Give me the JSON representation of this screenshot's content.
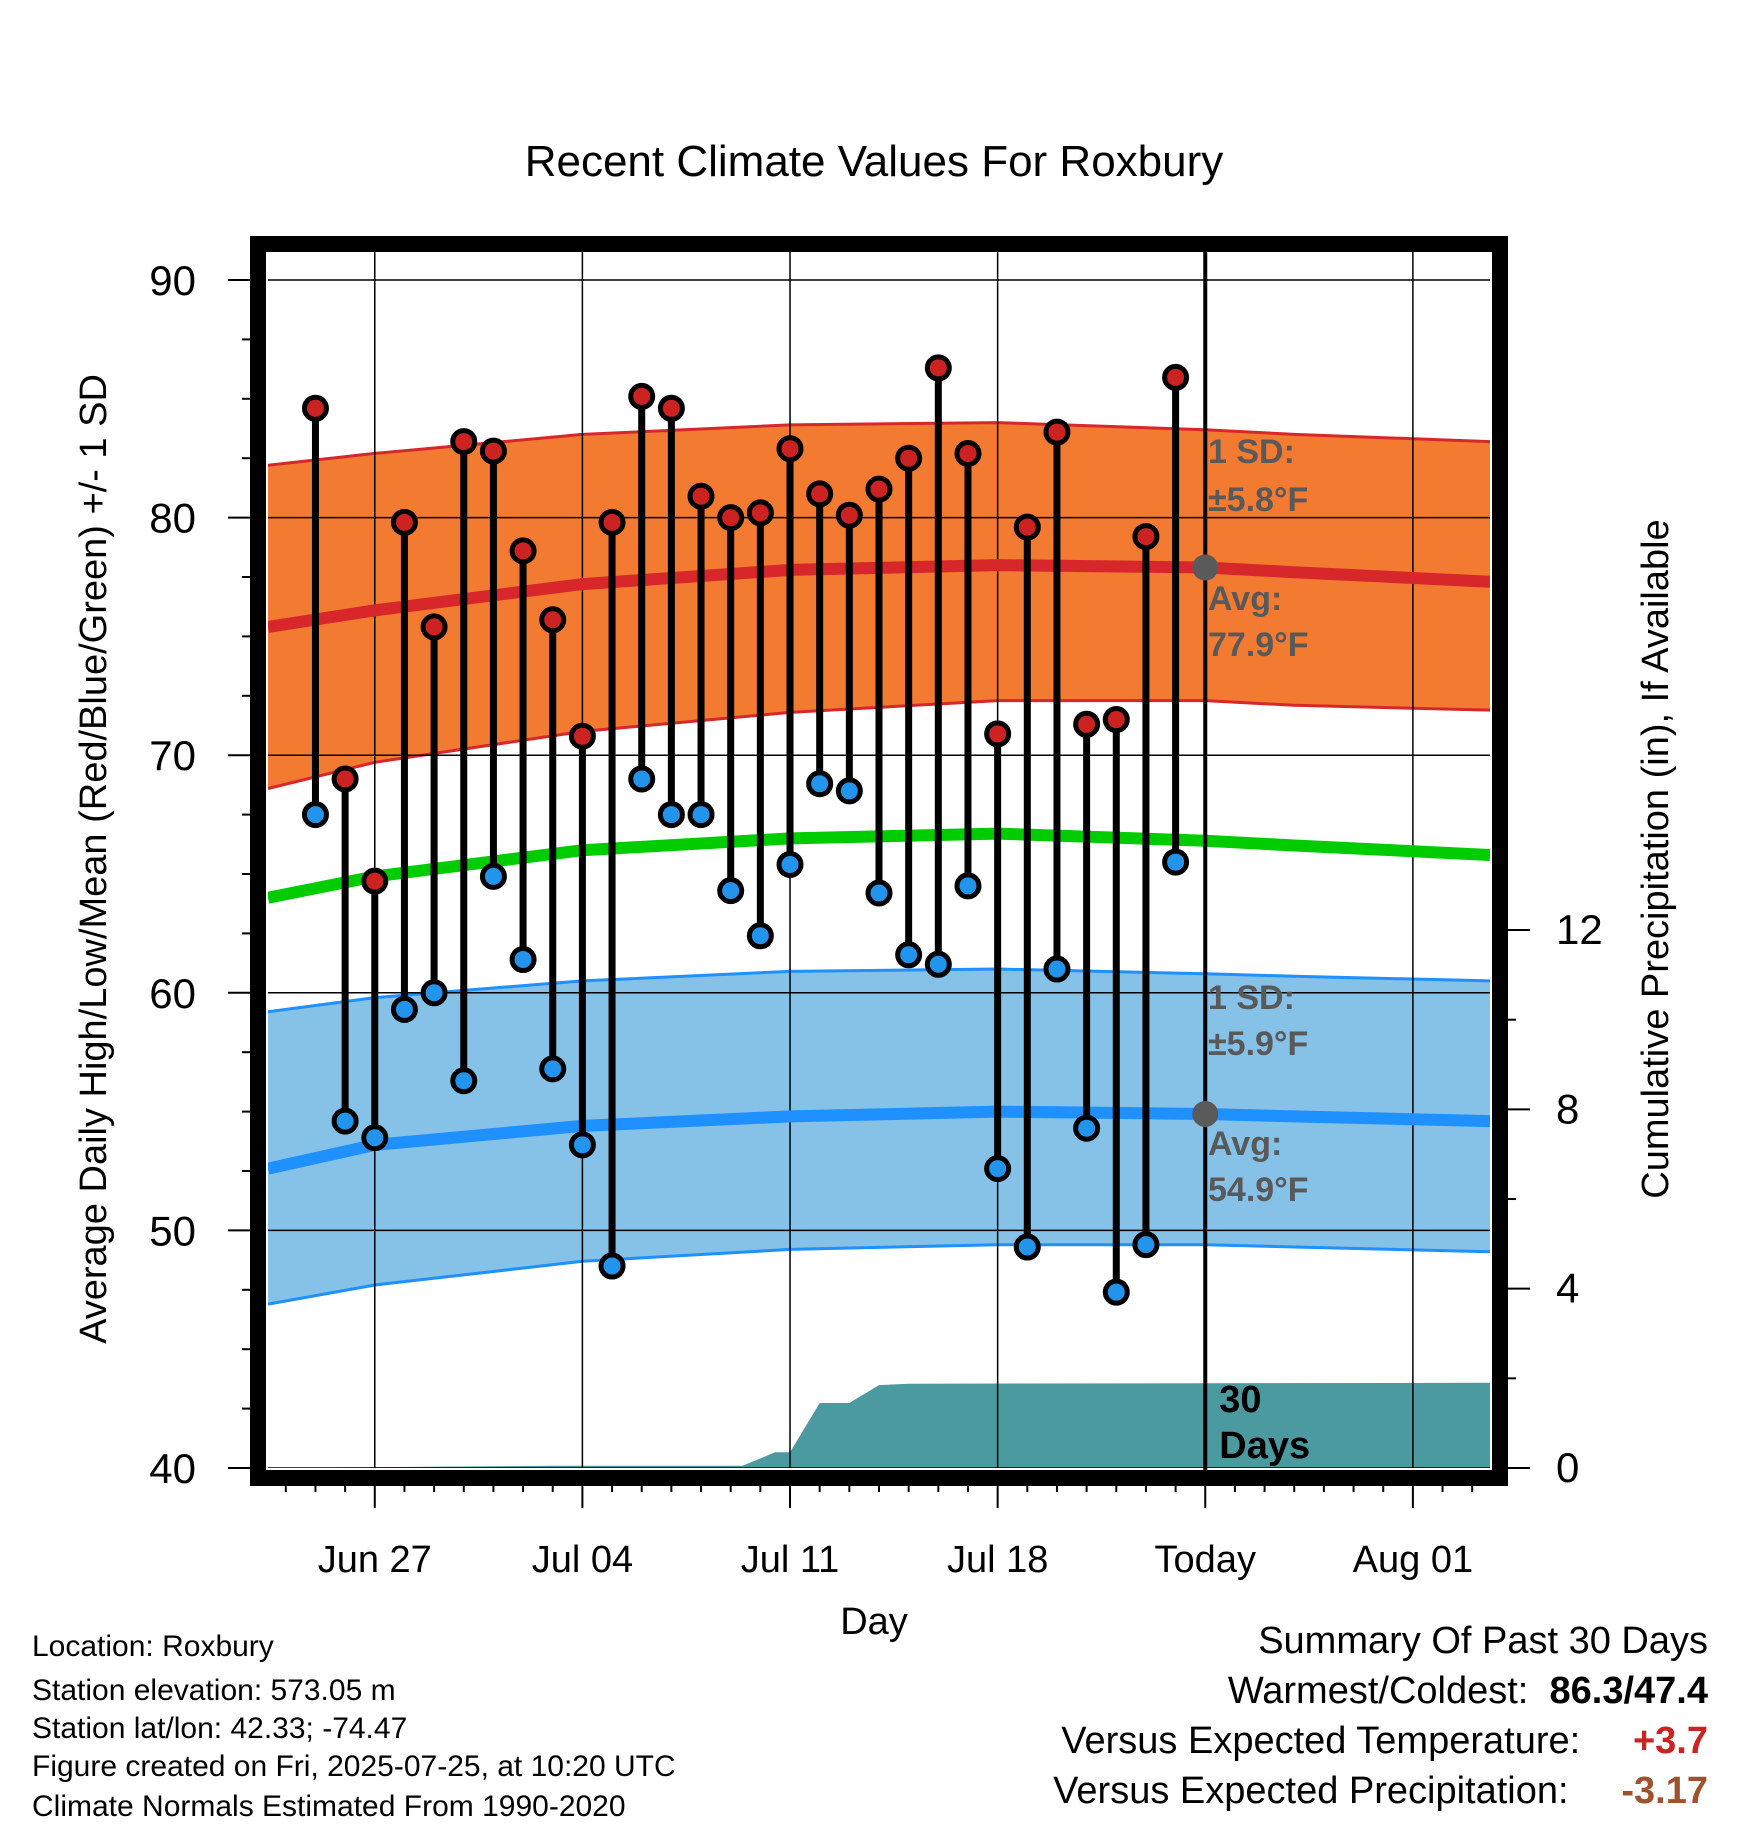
{
  "chart_data": {
    "type": "line",
    "title": "Recent Climate Values For Roxbury",
    "xlabel": "Day",
    "ylabel": "Average Daily High/Low/Mean (Red/Blue/Green) +/- 1 SD",
    "ylabel_right": "Cumulative Precipitation (in), If Available",
    "ylim": [
      40,
      90
    ],
    "ylim_right": [
      0,
      26.5
    ],
    "y_ticks": [
      "40",
      "50",
      "60",
      "70",
      "80",
      "90"
    ],
    "y_ticks_right": [
      "0",
      "4",
      "8",
      "12"
    ],
    "x_ticks": [
      "Jun 27",
      "Jul 04",
      "Jul 11",
      "Jul 18",
      "Today",
      "Aug 01"
    ],
    "x_range_days": [
      -31.6,
      9.6
    ],
    "x_tick_days": [
      -28,
      -21,
      -14,
      -7,
      0,
      7
    ],
    "today_label": "30\nDays",
    "daily_days": [
      -30,
      -29,
      -28,
      -27,
      -26,
      -25,
      -24,
      -23,
      -22,
      -21,
      -20,
      -19,
      -18,
      -17,
      -16,
      -15,
      -14,
      -13,
      -12,
      -11,
      -10,
      -9,
      -8,
      -7,
      -6,
      -5,
      -4,
      -3,
      -2,
      -1
    ],
    "daily_high": [
      84.6,
      69.0,
      64.7,
      79.8,
      75.4,
      83.2,
      82.8,
      78.6,
      75.7,
      70.8,
      79.8,
      85.1,
      84.6,
      80.9,
      80.0,
      80.2,
      82.9,
      81.0,
      80.1,
      81.2,
      82.5,
      86.3,
      82.7,
      70.9,
      79.6,
      83.6,
      71.3,
      71.5,
      79.2,
      85.9
    ],
    "daily_low": [
      67.5,
      54.6,
      53.9,
      59.3,
      60.0,
      56.3,
      64.9,
      61.4,
      56.8,
      53.6,
      48.5,
      69.0,
      67.5,
      67.5,
      64.3,
      62.4,
      65.4,
      68.8,
      68.5,
      64.2,
      61.6,
      61.2,
      64.5,
      52.6,
      49.3,
      61.0,
      54.3,
      47.4,
      49.4,
      65.5
    ],
    "normal_high": {
      "days": [
        -31.6,
        -28,
        -21,
        -14,
        -7,
        0,
        3,
        9.6
      ],
      "mean": [
        75.4,
        76.1,
        77.2,
        77.8,
        78.0,
        77.9,
        77.7,
        77.3
      ],
      "upper": [
        82.2,
        82.7,
        83.5,
        83.9,
        84.0,
        83.7,
        83.5,
        83.2
      ],
      "lower": [
        68.6,
        69.7,
        71.0,
        71.8,
        72.3,
        72.3,
        72.1,
        71.9
      ]
    },
    "normal_mean": {
      "days": [
        -31.6,
        -28,
        -21,
        -14,
        -7,
        0,
        3,
        9.6
      ],
      "mean": [
        64.0,
        64.9,
        66.0,
        66.5,
        66.7,
        66.4,
        66.2,
        65.8
      ]
    },
    "normal_low": {
      "days": [
        -31.6,
        -28,
        -21,
        -14,
        -7,
        0,
        3,
        9.6
      ],
      "mean": [
        52.6,
        53.6,
        54.4,
        54.8,
        55.0,
        54.9,
        54.8,
        54.6
      ],
      "upper": [
        59.2,
        59.8,
        60.5,
        60.9,
        61.0,
        60.8,
        60.7,
        60.5
      ],
      "lower": [
        46.9,
        47.7,
        48.7,
        49.2,
        49.4,
        49.4,
        49.3,
        49.1
      ]
    },
    "precip_cumulative": {
      "days": [
        -31.6,
        -22,
        -15.6,
        -14.5,
        -14,
        -13,
        -12,
        -11,
        -10,
        9.6
      ],
      "values": [
        0,
        0.05,
        0.05,
        0.35,
        0.35,
        1.45,
        1.45,
        1.85,
        1.88,
        1.9
      ]
    },
    "annotations": [
      {
        "id": "high_sd",
        "line1": "1 SD:",
        "line2": "±5.8°F"
      },
      {
        "id": "high_avg",
        "line1": "Avg:",
        "line2": "77.9°F"
      },
      {
        "id": "low_sd",
        "line1": "1 SD:",
        "line2": "±5.9°F"
      },
      {
        "id": "low_avg",
        "line1": "Avg:",
        "line2": "54.9°F"
      }
    ],
    "colors": {
      "high_band": "#f27a31",
      "high_line": "#d8272a",
      "low_band": "#86c1e8",
      "low_line": "#1e90ff",
      "mean_line": "#00cc00",
      "precip": "#4a9aa0",
      "high_dot": "#cc2222",
      "low_dot": "#2394ec",
      "annotation_text": "#595959"
    }
  },
  "info": {
    "location": "Location: Roxbury",
    "elevation": "Station elevation: 573.05 m",
    "latlon": "Station lat/lon: 42.33; -74.47",
    "created": "Figure created on Fri, 2025-07-25, at 10:20 UTC",
    "normals": "Climate Normals Estimated From 1990-2020"
  },
  "summary": {
    "title": "Summary Of Past 30 Days",
    "warm_cold_label": "Warmest/Coldest:",
    "warm_value": "86.3",
    "separator": "/",
    "cold_value": "47.4",
    "temp_label": "Versus Expected Temperature:",
    "temp_value": "+3.7",
    "temp_color": "#cc2222",
    "precip_label": "Versus Expected Precipitation:",
    "precip_value": "-3.17",
    "precip_color": "#a0522d"
  }
}
